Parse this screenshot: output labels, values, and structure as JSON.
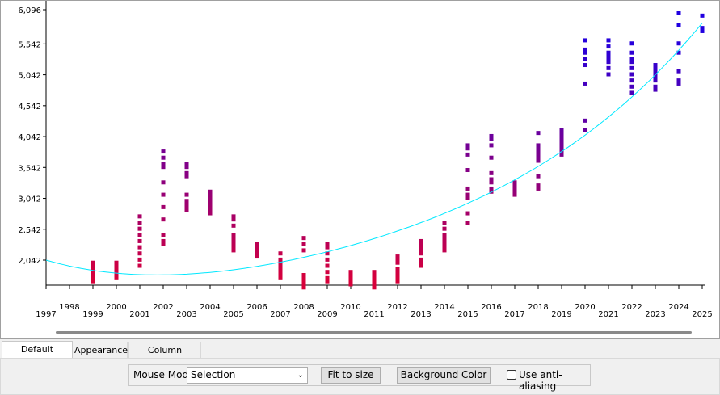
{
  "chart_data": {
    "type": "scatter",
    "title": "",
    "xlabel": "",
    "ylabel": "",
    "xlim": [
      1997,
      2025
    ],
    "ylim": [
      1600,
      6096
    ],
    "y_ticks": [
      2042,
      2542,
      3042,
      3542,
      4042,
      4542,
      5042,
      5542,
      6096
    ],
    "y_tick_labels": [
      "2,042",
      "2,542",
      "3,042",
      "3,542",
      "4,042",
      "4,542",
      "5,042",
      "5,542",
      "6,096"
    ],
    "x_ticks": [
      1997,
      1998,
      1999,
      2000,
      2001,
      2002,
      2003,
      2004,
      2005,
      2006,
      2007,
      2008,
      2009,
      2010,
      2011,
      2012,
      2013,
      2014,
      2015,
      2016,
      2017,
      2018,
      2019,
      2020,
      2021,
      2022,
      2023,
      2024,
      2025
    ],
    "x_tick_labels": [
      "1997",
      "1998",
      "1999",
      "2000",
      "2001",
      "2002",
      "2003",
      "2004",
      "2005",
      "2006",
      "2007",
      "2008",
      "2009",
      "2010",
      "2011",
      "2012",
      "2013",
      "2014",
      "2015",
      "2016",
      "2017",
      "2018",
      "2019",
      "2020",
      "2021",
      "2022",
      "2023",
      "2024",
      "2025"
    ],
    "grid": false,
    "points": [
      {
        "x": 1999,
        "y": [
          1700,
          1750,
          1800,
          1850,
          1900,
          1950,
          2000
        ]
      },
      {
        "x": 2000,
        "y": [
          1750,
          1800,
          1850,
          1900,
          1950,
          2000
        ]
      },
      {
        "x": 2001,
        "y": [
          1950,
          2050,
          2150,
          2250,
          2350,
          2450,
          2550,
          2650,
          2750
        ]
      },
      {
        "x": 2002,
        "y": [
          2300,
          2350,
          2450,
          2700,
          2900,
          3100,
          3300,
          3550,
          3600,
          3700,
          3800
        ]
      },
      {
        "x": 2003,
        "y": [
          2850,
          2900,
          2950,
          3000,
          3100,
          3400,
          3450,
          3550,
          3600
        ]
      },
      {
        "x": 2004,
        "y": [
          2800,
          2850,
          2900,
          2950,
          3000,
          3050,
          3100,
          3150
        ]
      },
      {
        "x": 2005,
        "y": [
          2200,
          2250,
          2300,
          2350,
          2400,
          2450,
          2600,
          2700,
          2750
        ]
      },
      {
        "x": 2006,
        "y": [
          2100,
          2150,
          2200,
          2250,
          2300
        ]
      },
      {
        "x": 2007,
        "y": [
          1750,
          1800,
          1850,
          1900,
          1950,
          2000,
          2050,
          2150
        ]
      },
      {
        "x": 2008,
        "y": [
          1600,
          1650,
          1700,
          1750,
          1800,
          2200,
          2300,
          2400
        ]
      },
      {
        "x": 2009,
        "y": [
          1700,
          1750,
          1850,
          1950,
          2050,
          2150,
          2250,
          2300
        ]
      },
      {
        "x": 2010,
        "y": [
          1650,
          1700,
          1750,
          1800,
          1850
        ]
      },
      {
        "x": 2011,
        "y": [
          1600,
          1650,
          1700,
          1750,
          1800,
          1850
        ]
      },
      {
        "x": 2012,
        "y": [
          1700,
          1750,
          1800,
          1850,
          1900,
          2000,
          2050,
          2100
        ]
      },
      {
        "x": 2013,
        "y": [
          1950,
          2000,
          2050,
          2150,
          2200,
          2250,
          2300,
          2350
        ]
      },
      {
        "x": 2014,
        "y": [
          2200,
          2250,
          2300,
          2350,
          2400,
          2450,
          2550,
          2650
        ]
      },
      {
        "x": 2015,
        "y": [
          2650,
          2800,
          3050,
          3100,
          3200,
          3500,
          3750,
          3850,
          3900
        ]
      },
      {
        "x": 2016,
        "y": [
          3150,
          3200,
          3300,
          3350,
          3450,
          3700,
          3900,
          4000,
          4050
        ]
      },
      {
        "x": 2017,
        "y": [
          3100,
          3150,
          3200,
          3250,
          3300
        ]
      },
      {
        "x": 2018,
        "y": [
          3200,
          3250,
          3400,
          3650,
          3700,
          3750,
          3800,
          3850,
          3900,
          4100
        ]
      },
      {
        "x": 2019,
        "y": [
          3750,
          3800,
          3850,
          3900,
          3950,
          4000,
          4050,
          4100,
          4150
        ]
      },
      {
        "x": 2020,
        "y": [
          4150,
          4300,
          4900,
          5200,
          5300,
          5400,
          5450,
          5600
        ]
      },
      {
        "x": 2021,
        "y": [
          5050,
          5150,
          5250,
          5300,
          5350,
          5400,
          5500,
          5600
        ]
      },
      {
        "x": 2022,
        "y": [
          4750,
          4850,
          4950,
          5050,
          5150,
          5250,
          5300,
          5400,
          5550
        ]
      },
      {
        "x": 2023,
        "y": [
          4800,
          4850,
          4950,
          5000,
          5050,
          5100,
          5150,
          5200
        ]
      },
      {
        "x": 2024,
        "y": [
          4900,
          4950,
          5100,
          5400,
          5550,
          5850,
          6050
        ]
      },
      {
        "x": 2025,
        "y": [
          5750,
          5800,
          6000
        ]
      }
    ],
    "color_low": "#d8003a",
    "color_high": "#2000e0",
    "trendline": {
      "type": "quadratic",
      "color": "#00e8ff",
      "points": [
        [
          1997,
          2042
        ],
        [
          2003,
          1815
        ],
        [
          2011,
          2390
        ],
        [
          2019,
          3800
        ],
        [
          2025,
          5880
        ]
      ]
    }
  },
  "tabs": [
    {
      "label": "Default Settings"
    },
    {
      "label": "Appearance"
    },
    {
      "label": "Column Selection"
    }
  ],
  "toolbar": {
    "mouse_mode_label": "Mouse Mode",
    "mouse_mode_value": "Selection",
    "fit_button": "Fit to size",
    "background_button": "Background Color",
    "antialias_label": "Use anti-aliasing",
    "antialias_checked": false
  }
}
